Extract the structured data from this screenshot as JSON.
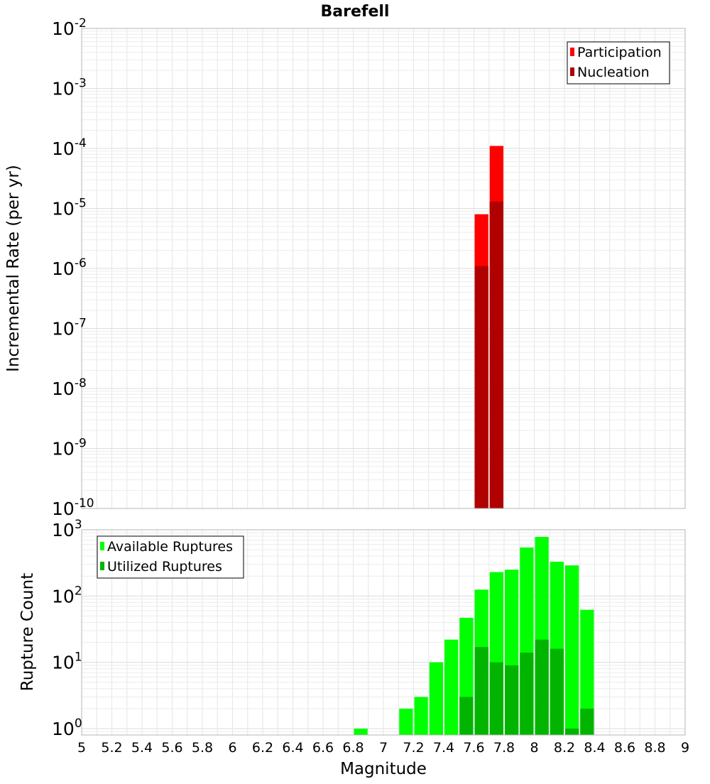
{
  "chart_data": [
    {
      "type": "bar",
      "title": "Barefell",
      "ylabel": "Incremental Rate (per yr)",
      "yscale": "log",
      "ylim": [
        1e-10,
        0.01
      ],
      "xlim": [
        5,
        9
      ],
      "grid": true,
      "legend_position": "top-right",
      "y_ticks": [
        {
          "base": "10",
          "exp": "-10"
        },
        {
          "base": "10",
          "exp": "-9"
        },
        {
          "base": "10",
          "exp": "-8"
        },
        {
          "base": "10",
          "exp": "-7"
        },
        {
          "base": "10",
          "exp": "-6"
        },
        {
          "base": "10",
          "exp": "-5"
        },
        {
          "base": "10",
          "exp": "-4"
        },
        {
          "base": "10",
          "exp": "-3"
        },
        {
          "base": "10",
          "exp": "-2"
        }
      ],
      "bin_width": 0.1,
      "series": [
        {
          "name": "Participation",
          "color": "#ff0000",
          "points": [
            {
              "x": 7.65,
              "y": 8e-06
            },
            {
              "x": 7.75,
              "y": 0.00011
            }
          ]
        },
        {
          "name": "Nucleation",
          "color": "#b00000",
          "points": [
            {
              "x": 7.65,
              "y": 1.1e-06
            },
            {
              "x": 7.75,
              "y": 1.3e-05
            }
          ]
        }
      ]
    },
    {
      "type": "bar",
      "xlabel": "Magnitude",
      "ylabel": "Rupture Count",
      "yscale": "log",
      "ylim": [
        0.8,
        1000
      ],
      "xlim": [
        5,
        9
      ],
      "grid": true,
      "legend_position": "top-left",
      "y_ticks": [
        {
          "base": "10",
          "exp": "0"
        },
        {
          "base": "10",
          "exp": "1"
        },
        {
          "base": "10",
          "exp": "2"
        },
        {
          "base": "10",
          "exp": "3"
        }
      ],
      "x_ticks": [
        "5",
        "5.2",
        "5.4",
        "5.6",
        "5.8",
        "6",
        "6.2",
        "6.4",
        "6.6",
        "6.8",
        "7",
        "7.2",
        "7.4",
        "7.6",
        "7.8",
        "8",
        "8.2",
        "8.4",
        "8.6",
        "8.8",
        "9"
      ],
      "bin_width": 0.1,
      "series": [
        {
          "name": "Available Ruptures",
          "color": "#00ff00",
          "points": [
            {
              "x": 6.85,
              "y": 1
            },
            {
              "x": 7.15,
              "y": 2
            },
            {
              "x": 7.25,
              "y": 3
            },
            {
              "x": 7.35,
              "y": 10
            },
            {
              "x": 7.45,
              "y": 22
            },
            {
              "x": 7.55,
              "y": 47
            },
            {
              "x": 7.65,
              "y": 125
            },
            {
              "x": 7.75,
              "y": 230
            },
            {
              "x": 7.85,
              "y": 250
            },
            {
              "x": 7.95,
              "y": 540
            },
            {
              "x": 8.05,
              "y": 780
            },
            {
              "x": 8.15,
              "y": 330
            },
            {
              "x": 8.25,
              "y": 290
            },
            {
              "x": 8.35,
              "y": 62
            }
          ]
        },
        {
          "name": "Utilized Ruptures",
          "color": "#00b400",
          "points": [
            {
              "x": 7.55,
              "y": 3
            },
            {
              "x": 7.65,
              "y": 17
            },
            {
              "x": 7.75,
              "y": 10
            },
            {
              "x": 7.85,
              "y": 9
            },
            {
              "x": 7.95,
              "y": 14
            },
            {
              "x": 8.05,
              "y": 22
            },
            {
              "x": 8.15,
              "y": 16
            },
            {
              "x": 8.25,
              "y": 1
            },
            {
              "x": 8.35,
              "y": 2
            }
          ]
        }
      ]
    }
  ]
}
